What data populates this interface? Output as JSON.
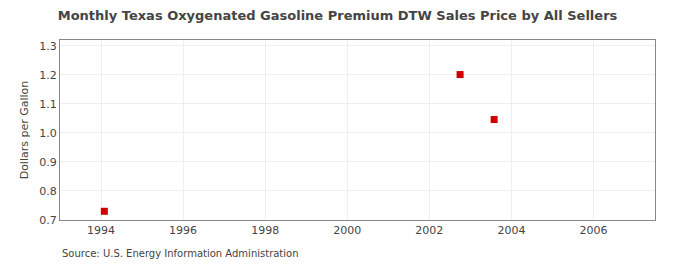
{
  "chart_data": {
    "type": "scatter",
    "title": "Monthly Texas Oxygenated Gasoline Premium DTW Sales Price by All Sellers",
    "ylabel": "Dollars per Gallon",
    "annotations": [
      "Source: U.S. Energy Information Administration"
    ],
    "x": [
      1994.08,
      2002.75,
      2003.58
    ],
    "values": [
      0.73,
      1.201,
      1.046
    ],
    "color": "#cc0000",
    "marker": "square",
    "xlim": [
      1993.0,
      2007.5
    ],
    "ylim": [
      0.7,
      1.32
    ],
    "xticks": [
      1994,
      1996,
      1998,
      2000,
      2002,
      2004,
      2006
    ],
    "yticks": [
      0.7,
      0.8,
      0.9,
      {
        "value": 1.0,
        "label": "1.0"
      },
      1.1,
      1.2,
      1.3
    ],
    "grid": true
  }
}
